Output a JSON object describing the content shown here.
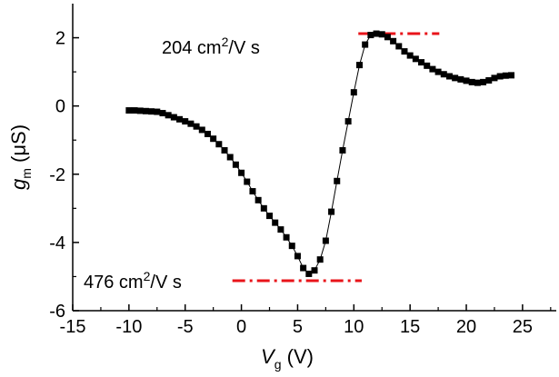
{
  "chart_data": {
    "type": "scatter",
    "title": "",
    "xlabel": {
      "main": "V",
      "sub": "g",
      "unit": " (V)"
    },
    "ylabel": {
      "main": "g",
      "sub": "m",
      "unit": " (μS)"
    },
    "xlim": [
      -15,
      28
    ],
    "ylim": [
      -6,
      3
    ],
    "xticks": [
      -15,
      -10,
      -5,
      0,
      5,
      10,
      15,
      20,
      25
    ],
    "yticks": [
      -6,
      -4,
      -2,
      0,
      2
    ],
    "xtick_labels": [
      "-15",
      "-10",
      "-5",
      "0",
      "5",
      "10",
      "15",
      "20",
      "25"
    ],
    "ytick_labels": [
      "-6",
      "-4",
      "-2",
      "0",
      "2"
    ],
    "series": [
      {
        "name": "gm vs Vg",
        "marker": "square",
        "color": "#000000",
        "points": [
          [
            -10.0,
            -0.13
          ],
          [
            -9.5,
            -0.13
          ],
          [
            -9.0,
            -0.14
          ],
          [
            -8.5,
            -0.15
          ],
          [
            -8.0,
            -0.16
          ],
          [
            -7.5,
            -0.17
          ],
          [
            -7.0,
            -0.21
          ],
          [
            -6.5,
            -0.27
          ],
          [
            -6.0,
            -0.33
          ],
          [
            -5.5,
            -0.39
          ],
          [
            -5.0,
            -0.45
          ],
          [
            -4.5,
            -0.52
          ],
          [
            -4.0,
            -0.6
          ],
          [
            -3.5,
            -0.7
          ],
          [
            -3.0,
            -0.82
          ],
          [
            -2.5,
            -0.96
          ],
          [
            -2.0,
            -1.12
          ],
          [
            -1.5,
            -1.3
          ],
          [
            -1.0,
            -1.5
          ],
          [
            -0.5,
            -1.72
          ],
          [
            0.0,
            -1.96
          ],
          [
            0.5,
            -2.22
          ],
          [
            1.0,
            -2.5
          ],
          [
            1.5,
            -2.76
          ],
          [
            2.0,
            -3.0
          ],
          [
            2.5,
            -3.22
          ],
          [
            3.0,
            -3.42
          ],
          [
            3.5,
            -3.62
          ],
          [
            4.0,
            -3.85
          ],
          [
            4.5,
            -4.1
          ],
          [
            5.0,
            -4.4
          ],
          [
            5.5,
            -4.75
          ],
          [
            6.0,
            -4.92
          ],
          [
            6.5,
            -4.82
          ],
          [
            7.0,
            -4.5
          ],
          [
            7.5,
            -3.95
          ],
          [
            8.0,
            -3.1
          ],
          [
            8.5,
            -2.2
          ],
          [
            9.0,
            -1.3
          ],
          [
            9.5,
            -0.45
          ],
          [
            10.0,
            0.4
          ],
          [
            10.5,
            1.2
          ],
          [
            11.0,
            1.8
          ],
          [
            11.5,
            2.08
          ],
          [
            12.0,
            2.12
          ],
          [
            12.5,
            2.1
          ],
          [
            13.0,
            2.02
          ],
          [
            13.5,
            1.9
          ],
          [
            14.0,
            1.75
          ],
          [
            14.5,
            1.6
          ],
          [
            15.0,
            1.48
          ],
          [
            15.5,
            1.38
          ],
          [
            16.0,
            1.28
          ],
          [
            16.5,
            1.18
          ],
          [
            17.0,
            1.08
          ],
          [
            17.5,
            1.0
          ],
          [
            18.0,
            0.93
          ],
          [
            18.5,
            0.87
          ],
          [
            19.0,
            0.82
          ],
          [
            19.5,
            0.78
          ],
          [
            20.0,
            0.74
          ],
          [
            20.5,
            0.7
          ],
          [
            21.0,
            0.68
          ],
          [
            21.5,
            0.7
          ],
          [
            22.0,
            0.75
          ],
          [
            22.5,
            0.82
          ],
          [
            23.0,
            0.87
          ],
          [
            23.5,
            0.89
          ],
          [
            24.0,
            0.9
          ]
        ]
      }
    ],
    "annotations": [
      {
        "text": "204 cm",
        "superscript": "2",
        "suffix": "/V s",
        "line_y": 2.12,
        "line_x": [
          10.4,
          17.6
        ],
        "line_color": "#e8141a",
        "line_style": "dash-dot"
      },
      {
        "text": "476 cm",
        "superscript": "2",
        "suffix": "/V s",
        "line_y": -5.12,
        "line_x": [
          -0.8,
          10.7
        ],
        "line_color": "#e8141a",
        "line_style": "dash-dot"
      }
    ]
  }
}
